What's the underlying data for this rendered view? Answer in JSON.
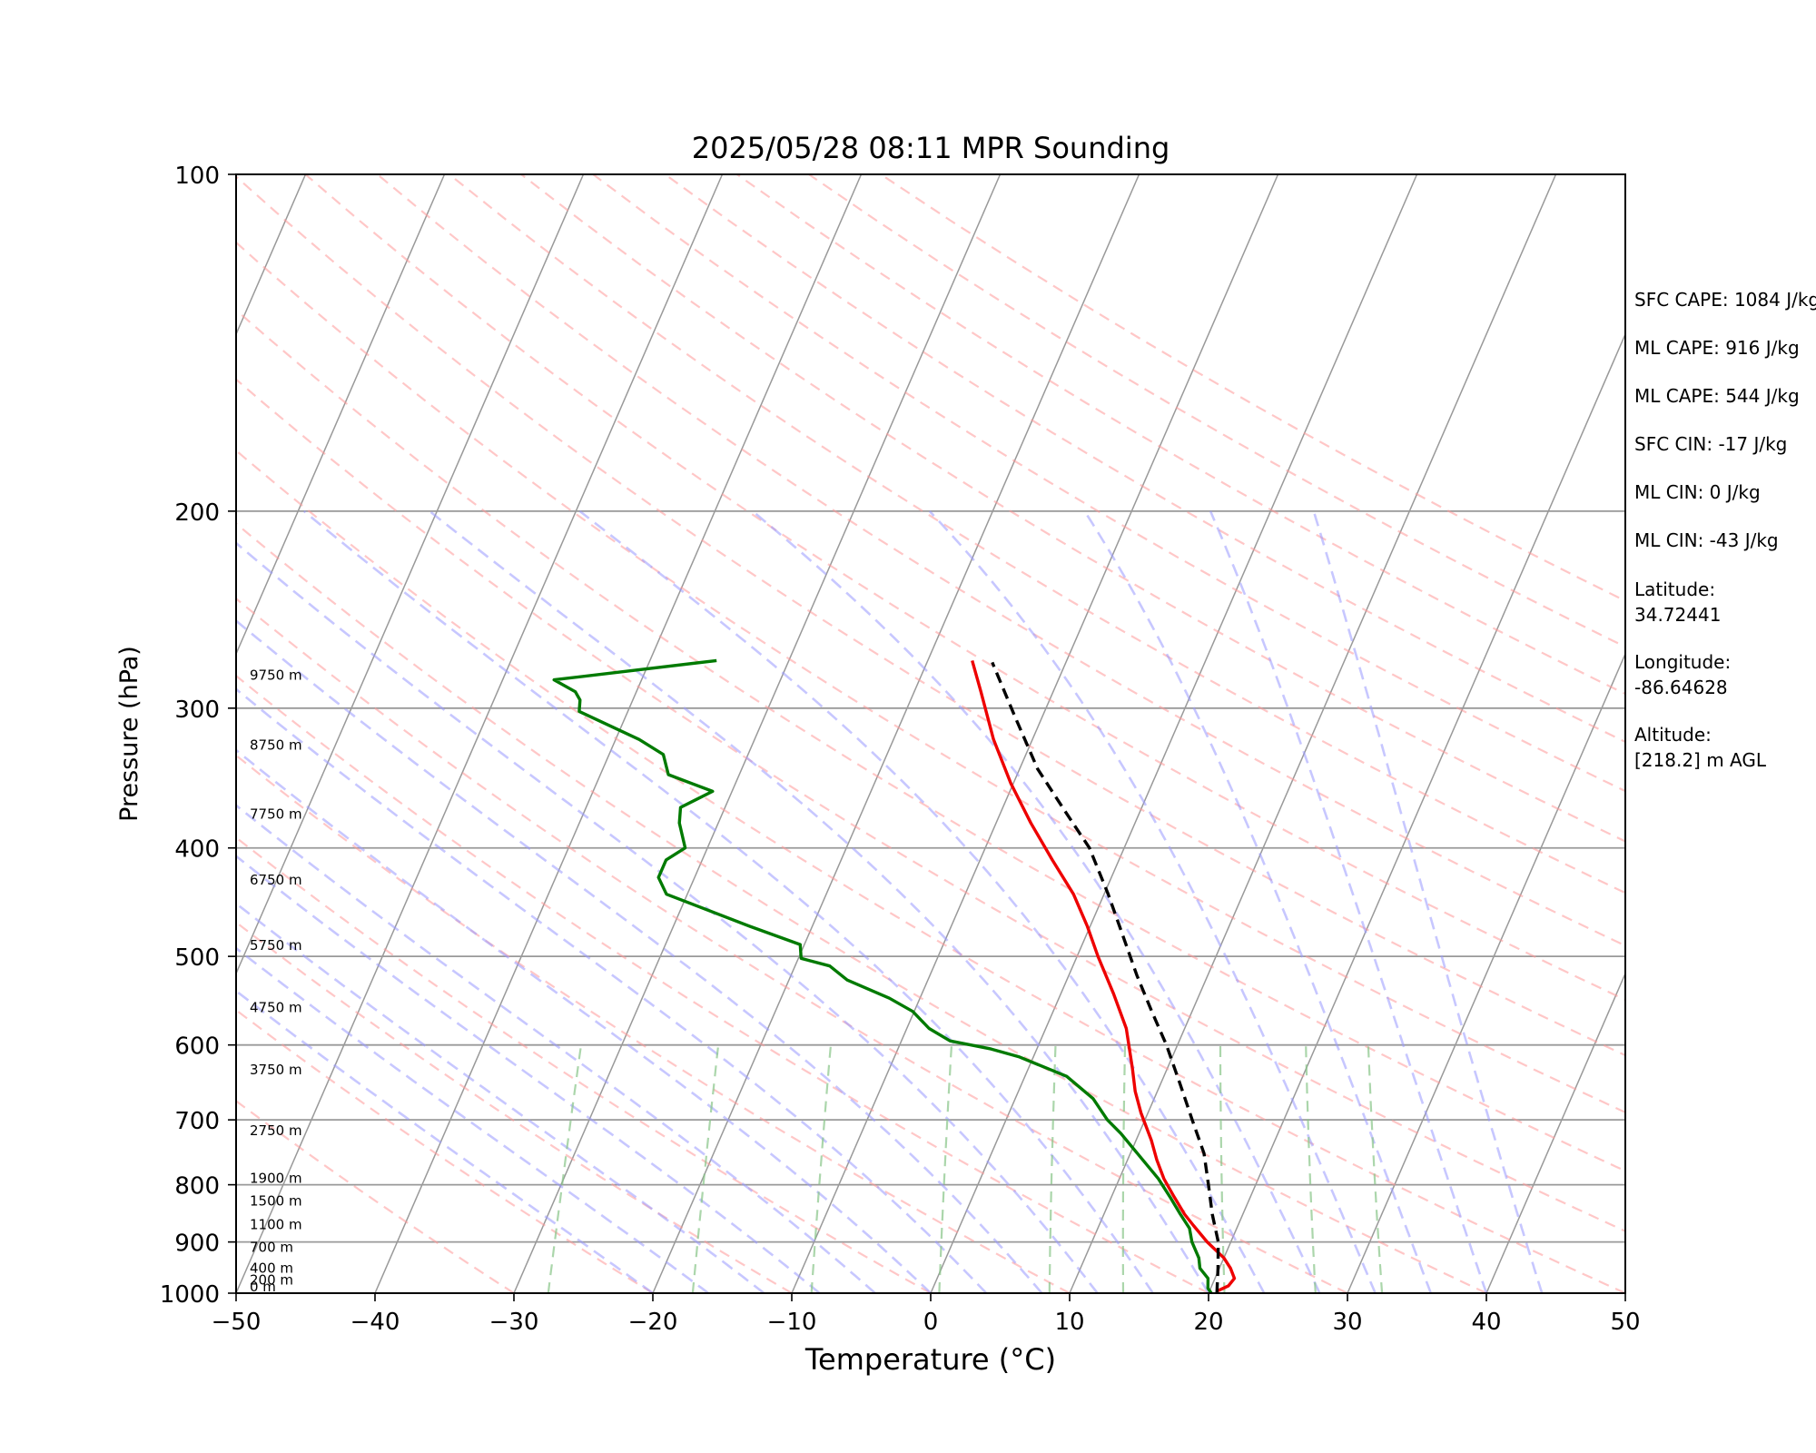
{
  "chart_data": {
    "type": "line",
    "title": "2025/05/28 08:11 MPR Sounding",
    "xlabel": "Temperature (°C)",
    "ylabel": "Pressure (hPa)",
    "xlim": [
      -50,
      50
    ],
    "ylim": [
      1000,
      100
    ],
    "y_scale": "log",
    "x_ticks": [
      "−50",
      "−40",
      "−30",
      "−20",
      "−10",
      "0",
      "10",
      "20",
      "30",
      "40",
      "50"
    ],
    "y_ticks": [
      "100",
      "200",
      "300",
      "400",
      "500",
      "600",
      "700",
      "800",
      "900",
      "1000"
    ],
    "colors": {
      "temperature": "#ee0000",
      "dewpoint": "#007a00",
      "parcel": "#000000",
      "dry_adiabats": "#ff9999",
      "moist_adiabats": "#9999ff",
      "mixing_ratio": "#88c488",
      "isotherms": "#999999"
    },
    "series": [
      {
        "x": [
          20.6,
          21.2,
          21.4,
          20.8,
          20.0,
          18.3,
          16.8,
          15.8,
          14.5,
          13.2,
          12.1,
          11.1,
          9.5,
          8.4,
          7.5,
          5.8,
          3.8,
          1.5,
          -0.2,
          -2.2,
          -4.8,
          -7.5,
          -10.2,
          -12.8,
          -15.2,
          -16.8
        ],
        "y": [
          995,
          985,
          970,
          950,
          930,
          900,
          870,
          850,
          820,
          790,
          760,
          730,
          690,
          660,
          630,
          580,
          540,
          500,
          470,
          440,
          410,
          380,
          350,
          320,
          290,
          272
        ]
      },
      {
        "x": [
          20.2,
          19.8,
          19.5,
          18.6,
          18.2,
          17.2,
          16.6,
          15.5,
          14.2,
          12.8,
          10.5,
          8.7,
          7.3,
          5.6,
          3.0,
          -1.0,
          -3.3,
          -6.5,
          -8.4,
          -10.1,
          -12.2,
          -15.8,
          -17.5,
          -19.8,
          -20.3,
          -24.5,
          -31.5,
          -32.6,
          -32.6,
          -31.6,
          -32.8,
          -33.2,
          -31.4,
          -35.1,
          -36.1,
          -38.3,
          -43.5,
          -43.8,
          -44.4,
          -46.3,
          -35.2
        ],
        "y": [
          1000,
          990,
          970,
          950,
          930,
          900,
          875,
          850,
          820,
          790,
          750,
          720,
          700,
          670,
          640,
          615,
          605,
          595,
          580,
          560,
          545,
          525,
          510,
          502,
          488,
          470,
          440,
          425,
          410,
          400,
          380,
          368,
          356,
          344,
          330,
          320,
          302,
          295,
          290,
          283,
          272
        ]
      },
      {
        "x": [
          20.6,
          19.9,
          19.1,
          17.8,
          16.6,
          15.3,
          13.4,
          11.4,
          9.2,
          7.1,
          4.9,
          2.7,
          0.3,
          -2.5,
          -5.5,
          -8.7,
          -12.0,
          -15.3
        ],
        "y": [
          1000,
          950,
          900,
          850,
          800,
          750,
          700,
          650,
          600,
          560,
          520,
          480,
          440,
          400,
          370,
          340,
          305,
          273
        ]
      }
    ],
    "height_labels": [
      {
        "p": 1000,
        "label": "0 m"
      },
      {
        "p": 986,
        "label": "200 m"
      },
      {
        "p": 962,
        "label": "400 m"
      },
      {
        "p": 922,
        "label": "700 m"
      },
      {
        "p": 880,
        "label": "1100 m"
      },
      {
        "p": 838,
        "label": "1500 m"
      },
      {
        "p": 800,
        "label": "1900 m"
      },
      {
        "p": 725,
        "label": "2750 m"
      },
      {
        "p": 640,
        "label": "3750 m"
      },
      {
        "p": 563,
        "label": "4750 m"
      },
      {
        "p": 495,
        "label": "5750 m"
      },
      {
        "p": 433,
        "label": "6750 m"
      },
      {
        "p": 378,
        "label": "7750 m"
      },
      {
        "p": 328,
        "label": "8750 m"
      },
      {
        "p": 284,
        "label": "9750 m"
      }
    ]
  },
  "stats": {
    "sfc_cape": "SFC CAPE: 1084 J/kg",
    "ml_cape_1": "ML CAPE: 916 J/kg",
    "ml_cape_2": "ML CAPE: 544 J/kg",
    "sfc_cin": "SFC CIN: -17 J/kg",
    "ml_cin_1": "ML CIN: 0 J/kg",
    "ml_cin_2": "ML CIN: -43 J/kg",
    "latitude_label": "Latitude:",
    "latitude_value": "34.72441",
    "longitude_label": "Longitude:",
    "longitude_value": "-86.64628",
    "altitude_label": "Altitude:",
    "altitude_value": "[218.2] m AGL"
  }
}
